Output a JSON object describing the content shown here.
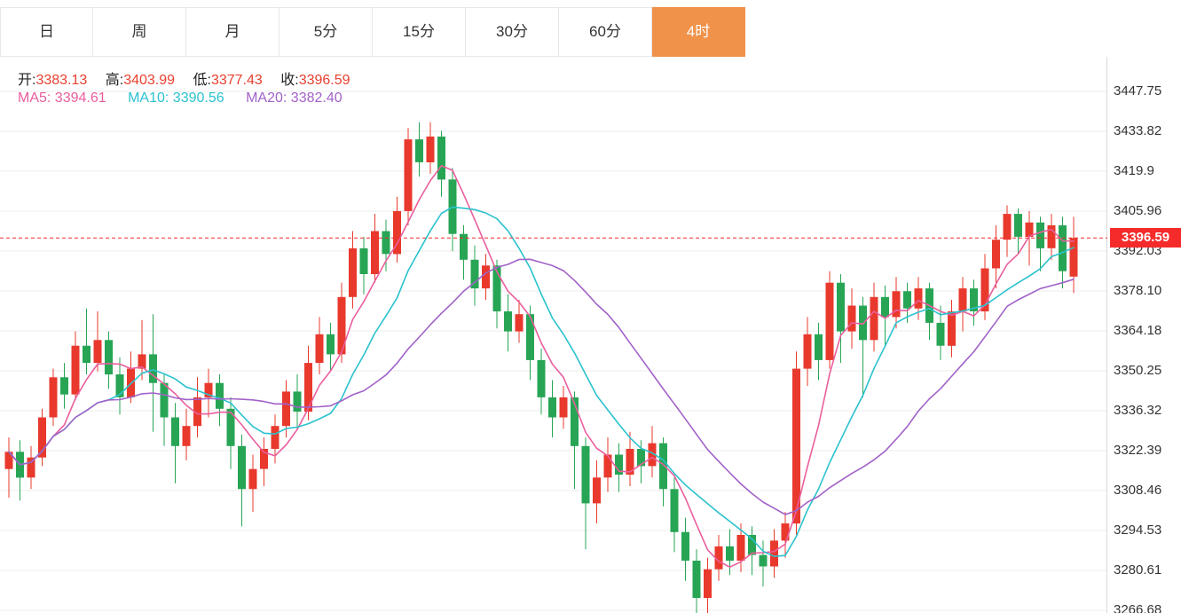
{
  "tabs": {
    "active_bg": "#f0924a",
    "items": [
      {
        "label": "日",
        "active": false
      },
      {
        "label": "周",
        "active": false
      },
      {
        "label": "月",
        "active": false
      },
      {
        "label": "5分",
        "active": false
      },
      {
        "label": "15分",
        "active": false
      },
      {
        "label": "30分",
        "active": false
      },
      {
        "label": "60分",
        "active": false
      },
      {
        "label": "4时",
        "active": true
      }
    ]
  },
  "ohlc": {
    "value_color": "#e8402f",
    "open_label": "开:",
    "open": "3383.13",
    "high_label": "高:",
    "high": "3403.99",
    "low_label": "低:",
    "low": "3377.43",
    "close_label": "收:",
    "close": "3396.59"
  },
  "ma": {
    "ma5_label": "MA5:",
    "ma5": "3394.61",
    "ma5_color": "#ea5e9d",
    "ma10_label": "MA10:",
    "ma10": "3390.56",
    "ma10_color": "#2ac2ce",
    "ma20_label": "MA20:",
    "ma20": "3382.40",
    "ma20_color": "#a162c8"
  },
  "price_tag": {
    "value": "3396.59",
    "bg": "#f52b2b"
  },
  "chart_data": {
    "type": "candlestick",
    "title": "",
    "timeframe_selected": "4时",
    "y_ticks": [
      "3447.75",
      "3433.82",
      "3419.9",
      "3405.96",
      "3392.03",
      "3378.10",
      "3364.18",
      "3350.25",
      "3336.32",
      "3322.39",
      "3308.46",
      "3294.53",
      "3280.61",
      "3266.68"
    ],
    "y_range": [
      3266.68,
      3447.75
    ],
    "grid": "horizontal",
    "legend_position": "top-left-overlay",
    "last_price": 3396.59,
    "last_price_color": "#f52b2b",
    "up_color": "#e8392c",
    "down_color": "#27a555",
    "ma_windows": [
      5,
      10,
      20
    ],
    "ma_colors": [
      "#ea5e9d",
      "#2ac2ce",
      "#a162c8"
    ],
    "candle_order": [
      "open",
      "high",
      "low",
      "close"
    ],
    "candles": [
      [
        3316,
        3327,
        3306,
        3322
      ],
      [
        3322,
        3326,
        3305,
        3313
      ],
      [
        3313,
        3324,
        3309,
        3320
      ],
      [
        3320,
        3337,
        3317,
        3334
      ],
      [
        3334,
        3351,
        3331,
        3348
      ],
      [
        3348,
        3353,
        3337,
        3342
      ],
      [
        3342,
        3364,
        3340,
        3359
      ],
      [
        3359,
        3372,
        3349,
        3353
      ],
      [
        3353,
        3371,
        3350,
        3361
      ],
      [
        3361,
        3364,
        3344,
        3349
      ],
      [
        3349,
        3355,
        3335,
        3341
      ],
      [
        3341,
        3357,
        3339,
        3351
      ],
      [
        3351,
        3368,
        3347,
        3356
      ],
      [
        3356,
        3370,
        3329,
        3346
      ],
      [
        3346,
        3349,
        3324,
        3334
      ],
      [
        3334,
        3339,
        3311,
        3324
      ],
      [
        3324,
        3337,
        3319,
        3331
      ],
      [
        3331,
        3348,
        3327,
        3341
      ],
      [
        3341,
        3351,
        3334,
        3346
      ],
      [
        3346,
        3349,
        3331,
        3337
      ],
      [
        3337,
        3341,
        3316,
        3324
      ],
      [
        3324,
        3328,
        3296,
        3309
      ],
      [
        3309,
        3321,
        3301,
        3316
      ],
      [
        3316,
        3327,
        3310,
        3323
      ],
      [
        3323,
        3335,
        3318,
        3331
      ],
      [
        3331,
        3347,
        3327,
        3343
      ],
      [
        3343,
        3349,
        3330,
        3336
      ],
      [
        3336,
        3359,
        3333,
        3353
      ],
      [
        3353,
        3369,
        3349,
        3363
      ],
      [
        3363,
        3367,
        3350,
        3356
      ],
      [
        3356,
        3381,
        3353,
        3376
      ],
      [
        3376,
        3399,
        3372,
        3393
      ],
      [
        3393,
        3397,
        3377,
        3384
      ],
      [
        3384,
        3405,
        3381,
        3399
      ],
      [
        3399,
        3403,
        3385,
        3391
      ],
      [
        3391,
        3411,
        3388,
        3406
      ],
      [
        3406,
        3435,
        3401,
        3431
      ],
      [
        3431,
        3437,
        3418,
        3423
      ],
      [
        3423,
        3437,
        3419,
        3432
      ],
      [
        3432,
        3434,
        3411,
        3417
      ],
      [
        3417,
        3421,
        3392,
        3398
      ],
      [
        3398,
        3401,
        3382,
        3389
      ],
      [
        3389,
        3394,
        3373,
        3379
      ],
      [
        3379,
        3391,
        3375,
        3387
      ],
      [
        3387,
        3389,
        3365,
        3371
      ],
      [
        3371,
        3377,
        3357,
        3364
      ],
      [
        3364,
        3375,
        3360,
        3370
      ],
      [
        3370,
        3373,
        3347,
        3354
      ],
      [
        3354,
        3358,
        3335,
        3341
      ],
      [
        3341,
        3347,
        3327,
        3334
      ],
      [
        3334,
        3345,
        3330,
        3341
      ],
      [
        3341,
        3343,
        3309,
        3324
      ],
      [
        3324,
        3327,
        3288,
        3304
      ],
      [
        3304,
        3319,
        3297,
        3313
      ],
      [
        3313,
        3327,
        3308,
        3321
      ],
      [
        3321,
        3325,
        3308,
        3314
      ],
      [
        3314,
        3329,
        3310,
        3323
      ],
      [
        3323,
        3326,
        3311,
        3317
      ],
      [
        3317,
        3331,
        3313,
        3325
      ],
      [
        3325,
        3327,
        3303,
        3309
      ],
      [
        3309,
        3313,
        3287,
        3294
      ],
      [
        3294,
        3299,
        3277,
        3284
      ],
      [
        3284,
        3288,
        3265,
        3271
      ],
      [
        3271,
        3285,
        3264,
        3281
      ],
      [
        3281,
        3293,
        3277,
        3289
      ],
      [
        3289,
        3295,
        3279,
        3284
      ],
      [
        3284,
        3297,
        3280,
        3293
      ],
      [
        3293,
        3296,
        3279,
        3286
      ],
      [
        3286,
        3291,
        3275,
        3282
      ],
      [
        3282,
        3295,
        3278,
        3291
      ],
      [
        3291,
        3301,
        3285,
        3297
      ],
      [
        3297,
        3357,
        3293,
        3351
      ],
      [
        3351,
        3369,
        3345,
        3363
      ],
      [
        3363,
        3367,
        3347,
        3354
      ],
      [
        3354,
        3385,
        3351,
        3381
      ],
      [
        3381,
        3384,
        3353,
        3364
      ],
      [
        3364,
        3379,
        3358,
        3373
      ],
      [
        3373,
        3376,
        3341,
        3361
      ],
      [
        3361,
        3381,
        3357,
        3376
      ],
      [
        3376,
        3380,
        3359,
        3369
      ],
      [
        3369,
        3383,
        3365,
        3378
      ],
      [
        3378,
        3381,
        3367,
        3372
      ],
      [
        3372,
        3383,
        3368,
        3379
      ],
      [
        3379,
        3381,
        3361,
        3367
      ],
      [
        3367,
        3373,
        3354,
        3359
      ],
      [
        3359,
        3375,
        3355,
        3371
      ],
      [
        3371,
        3383,
        3364,
        3379
      ],
      [
        3379,
        3382,
        3366,
        3371
      ],
      [
        3371,
        3391,
        3368,
        3386
      ],
      [
        3386,
        3401,
        3379,
        3396
      ],
      [
        3396,
        3408,
        3390,
        3405
      ],
      [
        3405,
        3407,
        3391,
        3397
      ],
      [
        3397,
        3406,
        3387,
        3402
      ],
      [
        3402,
        3404,
        3385,
        3393
      ],
      [
        3393,
        3405,
        3389,
        3401
      ],
      [
        3401,
        3404,
        3379,
        3385
      ],
      [
        3383.13,
        3403.99,
        3377.43,
        3396.59
      ]
    ]
  }
}
